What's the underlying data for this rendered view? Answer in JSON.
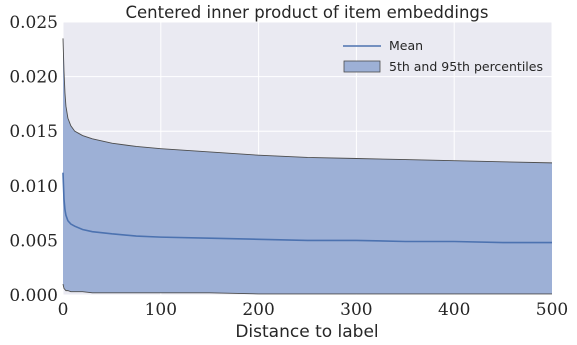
{
  "chart_data": {
    "type": "area",
    "title": "Centered inner product of item embeddings",
    "xlabel": "Distance to label",
    "ylabel": "",
    "xlim": [
      0,
      500
    ],
    "ylim": [
      0,
      0.025
    ],
    "xticks": [
      0,
      100,
      200,
      300,
      400,
      500
    ],
    "xtick_labels": [
      "0",
      "100",
      "200",
      "300",
      "400",
      "500"
    ],
    "yticks": [
      0,
      0.005,
      0.01,
      0.015,
      0.02,
      0.025
    ],
    "ytick_labels": [
      "0.000",
      "0.005",
      "0.010",
      "0.015",
      "0.020",
      "0.025"
    ],
    "grid": true,
    "legend_position": "top-right",
    "colors": {
      "background": "#eaeaf2",
      "grid": "#ffffff",
      "mean": "#4c72b0",
      "band_fill": "#9db0d6",
      "band_edge": "#4d4d4d"
    },
    "x": [
      0,
      1,
      2,
      3,
      5,
      8,
      12,
      20,
      30,
      50,
      75,
      100,
      150,
      200,
      250,
      300,
      350,
      400,
      450,
      500
    ],
    "series": [
      {
        "name": "Mean",
        "values": [
          0.0112,
          0.0088,
          0.0078,
          0.0073,
          0.0068,
          0.0065,
          0.0063,
          0.006,
          0.0058,
          0.0056,
          0.0054,
          0.0053,
          0.0052,
          0.0051,
          0.005,
          0.005,
          0.0049,
          0.0049,
          0.0048,
          0.0048
        ]
      },
      {
        "name": "5th and 95th percentiles",
        "upper": [
          0.0235,
          0.0205,
          0.0185,
          0.0173,
          0.0162,
          0.0155,
          0.015,
          0.0146,
          0.0143,
          0.0139,
          0.0136,
          0.0134,
          0.0131,
          0.0128,
          0.0126,
          0.0125,
          0.0124,
          0.0123,
          0.0122,
          0.0121
        ],
        "lower": [
          0.001,
          0.0006,
          0.0005,
          0.0004,
          0.0004,
          0.0003,
          0.0003,
          0.0003,
          0.0002,
          0.0002,
          0.0002,
          0.0002,
          0.0002,
          0.0001,
          0.0001,
          0.0001,
          0.0001,
          0.0001,
          0.0001,
          0.0001
        ]
      }
    ]
  }
}
